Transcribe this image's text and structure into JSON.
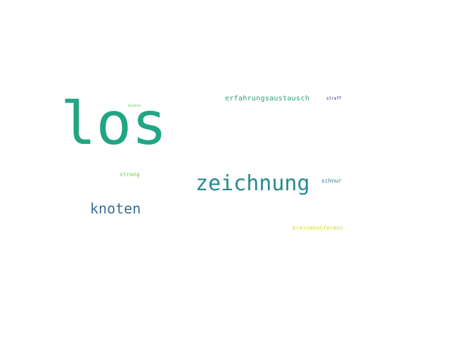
{
  "word_cloud": {
    "words": [
      {
        "text": "los",
        "color": "#21a585"
      },
      {
        "text": "zeichnung",
        "color": "#2a8a8e"
      },
      {
        "text": "knoten",
        "color": "#3b6f93"
      },
      {
        "text": "erfahrungsaustausch",
        "color": "#2ba07c"
      },
      {
        "text": "strang",
        "color": "#74cc52"
      },
      {
        "text": "schnur",
        "color": "#2a7f8e"
      },
      {
        "text": "pressekonferenz",
        "color": "#d8e219"
      },
      {
        "text": "straff",
        "color": "#46337e"
      },
      {
        "text": "double",
        "color": "#5ec962"
      }
    ]
  }
}
